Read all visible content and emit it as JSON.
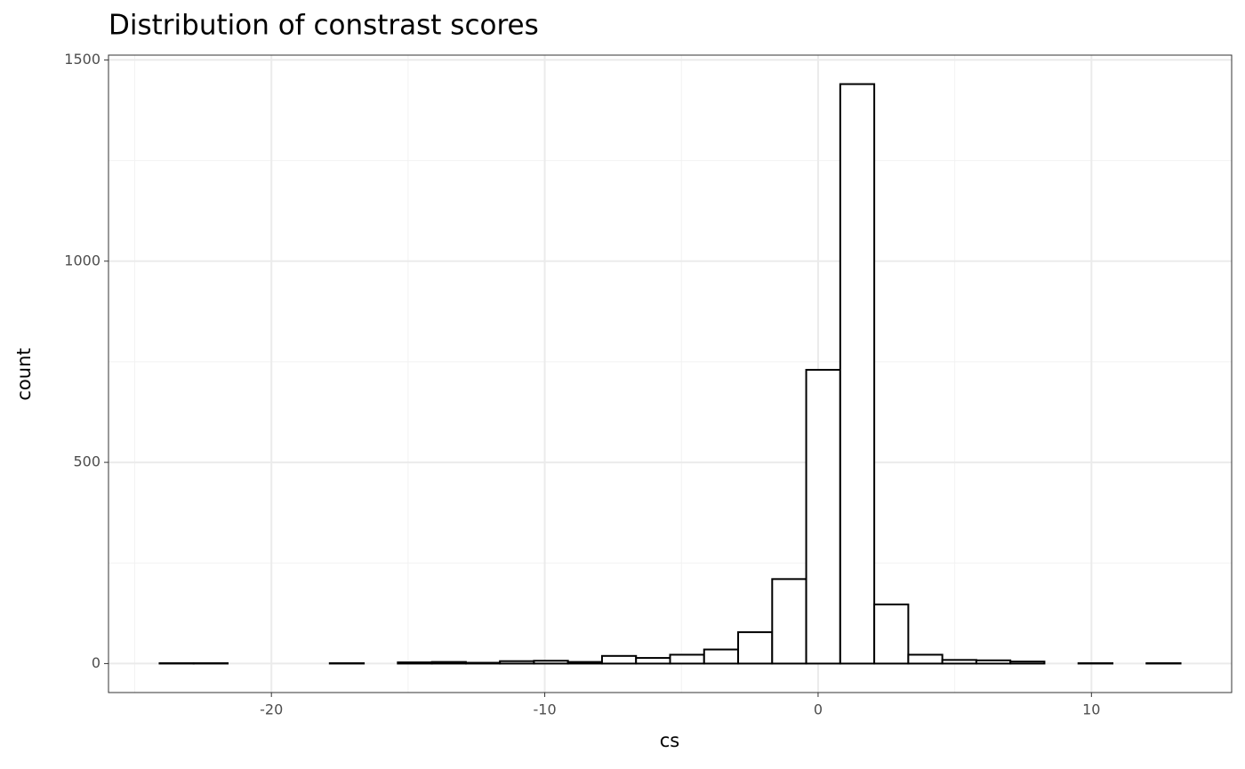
{
  "chart_data": {
    "type": "histogram",
    "title": "Distribution of constrast scores",
    "x_label": "cs",
    "y_label": "count",
    "bins": [
      -24.09,
      -22.845,
      -21.6,
      -20.355,
      -19.11,
      -17.865,
      -16.62,
      -15.375,
      -14.13,
      -12.885,
      -11.64,
      -10.395,
      -9.15,
      -7.905,
      -6.66,
      -5.415,
      -4.17,
      -2.925,
      -1.68,
      -0.435,
      0.81,
      2.055,
      3.3,
      4.545,
      5.79,
      7.035,
      8.28,
      9.525,
      10.77,
      12.015,
      13.26
    ],
    "values": [
      1,
      1,
      0,
      0,
      0,
      1,
      0,
      3,
      4,
      2,
      6,
      7,
      4,
      19,
      14,
      22,
      35,
      78,
      210,
      730,
      1440,
      147,
      22,
      9,
      8,
      5,
      0,
      1,
      0,
      1
    ],
    "color": "#ffffff",
    "edgecolor": "#000000",
    "xlim": [
      -25.96,
      15.13
    ],
    "xticks": [
      -20,
      -10,
      0,
      10
    ],
    "ylim": [
      -72,
      1512
    ],
    "yticks": [
      0,
      500,
      1000,
      1500
    ],
    "xminor": [
      -25,
      -15,
      -5,
      5
    ],
    "yminor": [
      250,
      750,
      1250
    ],
    "grid": true
  }
}
